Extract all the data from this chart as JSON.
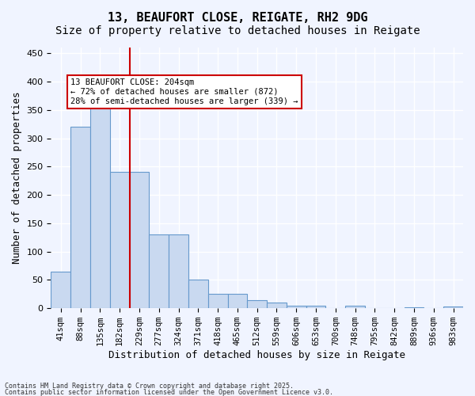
{
  "title1": "13, BEAUFORT CLOSE, REIGATE, RH2 9DG",
  "title2": "Size of property relative to detached houses in Reigate",
  "xlabel": "Distribution of detached houses by size in Reigate",
  "ylabel": "Number of detached properties",
  "categories": [
    "41sqm",
    "88sqm",
    "135sqm",
    "182sqm",
    "229sqm",
    "277sqm",
    "324sqm",
    "371sqm",
    "418sqm",
    "465sqm",
    "512sqm",
    "559sqm",
    "606sqm",
    "653sqm",
    "700sqm",
    "748sqm",
    "795sqm",
    "842sqm",
    "889sqm",
    "936sqm",
    "983sqm"
  ],
  "values": [
    65,
    320,
    358,
    240,
    240,
    130,
    130,
    50,
    25,
    25,
    14,
    10,
    5,
    4,
    0,
    4,
    0,
    0,
    2,
    0,
    3
  ],
  "bar_color": "#c9d9f0",
  "bar_edge_color": "#6699cc",
  "red_line_x": 3.5,
  "annotation_text": "13 BEAUFORT CLOSE: 204sqm\n← 72% of detached houses are smaller (872)\n28% of semi-detached houses are larger (339) →",
  "annotation_box_color": "#ffffff",
  "annotation_box_edge": "#cc0000",
  "footer1": "Contains HM Land Registry data © Crown copyright and database right 2025.",
  "footer2": "Contains public sector information licensed under the Open Government Licence v3.0.",
  "ylim": [
    0,
    460
  ],
  "background_color": "#f0f4ff",
  "grid_color": "#ffffff",
  "title_fontsize": 11,
  "subtitle_fontsize": 10,
  "tick_fontsize": 7.5,
  "ylabel_fontsize": 9,
  "xlabel_fontsize": 9
}
